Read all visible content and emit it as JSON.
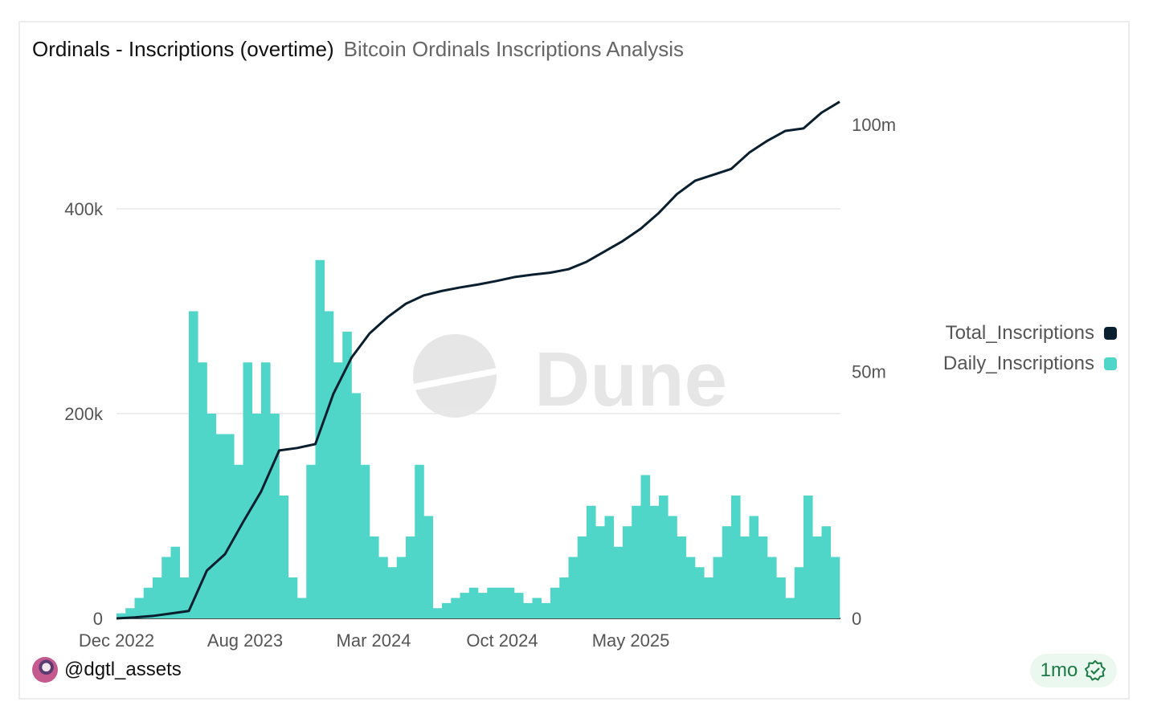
{
  "header": {
    "title": "Ordinals - Inscriptions (overtime)",
    "subtitle": "Bitcoin Ordinals Inscriptions Analysis"
  },
  "footer": {
    "author": "@dgtl_assets",
    "freshness": "1mo",
    "freshness_icon": "verified-badge-icon"
  },
  "watermark": "Dune",
  "colors": {
    "daily": "#4fd6c8",
    "total": "#0a1f2e",
    "grid": "#e8e8e8"
  },
  "chart_data": {
    "type": "bar+line",
    "x_tick_labels": [
      "Dec 2022",
      "Aug 2023",
      "Mar 2024",
      "Oct 2024",
      "May 2025"
    ],
    "left_axis": {
      "ticks": [
        "0",
        "200k",
        "400k"
      ],
      "range": [
        0,
        500000
      ]
    },
    "right_axis": {
      "ticks": [
        "0",
        "50m",
        "100m"
      ],
      "range": [
        0,
        105000000
      ]
    },
    "grid": true,
    "legend_position": "right",
    "legend": [
      "Total_Inscriptions",
      "Daily_Inscriptions"
    ],
    "series": [
      {
        "name": "Daily_Inscriptions",
        "type": "bar",
        "axis": "left",
        "x_start": "2022-12",
        "step": "half-month",
        "values": [
          5000,
          10000,
          20000,
          30000,
          40000,
          60000,
          70000,
          40000,
          300000,
          250000,
          200000,
          180000,
          180000,
          150000,
          250000,
          200000,
          250000,
          200000,
          120000,
          40000,
          20000,
          150000,
          350000,
          300000,
          250000,
          280000,
          220000,
          150000,
          80000,
          60000,
          50000,
          60000,
          80000,
          150000,
          100000,
          10000,
          15000,
          20000,
          25000,
          30000,
          25000,
          30000,
          30000,
          30000,
          25000,
          15000,
          20000,
          15000,
          30000,
          40000,
          60000,
          80000,
          110000,
          90000,
          100000,
          70000,
          90000,
          110000,
          140000,
          110000,
          120000,
          100000,
          80000,
          60000,
          50000,
          40000,
          60000,
          90000,
          120000,
          80000,
          100000,
          80000,
          60000,
          40000,
          20000,
          50000,
          120000,
          80000,
          90000,
          60000
        ]
      },
      {
        "name": "Total_Inscriptions",
        "type": "line",
        "axis": "right",
        "x_start": "2022-12",
        "step": "month",
        "values": [
          0,
          200000,
          500000,
          1000000,
          1500000,
          9700000,
          13000000,
          19500000,
          25700000,
          34000000,
          34500000,
          35300000,
          45500000,
          52800000,
          57700000,
          61000000,
          63700000,
          65400000,
          66300000,
          67000000,
          67600000,
          68300000,
          69100000,
          69600000,
          70000000,
          70700000,
          72200000,
          74300000,
          76400000,
          78900000,
          82100000,
          85900000,
          88600000,
          89800000,
          91000000,
          94300000,
          96700000,
          98700000,
          99200000,
          102400000,
          104600000
        ]
      }
    ]
  }
}
